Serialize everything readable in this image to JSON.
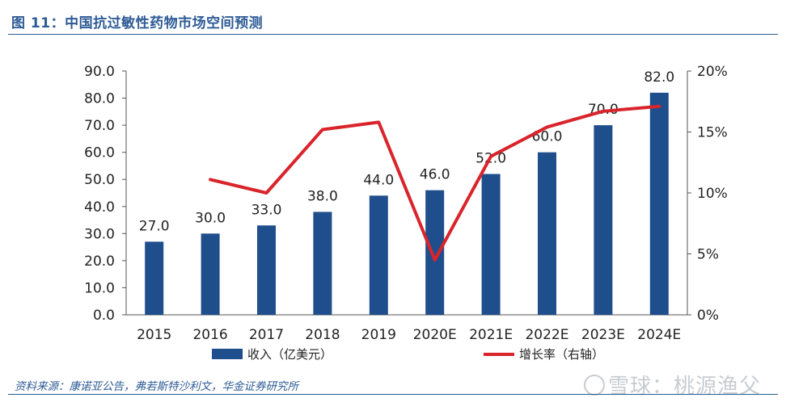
{
  "figure": {
    "title": "图 11：中国抗过敏性药物市场空间预测",
    "source": "资料来源：康诺亚公告，弗若斯特沙利文，华金证券研究所",
    "watermark": "雪球：桃源渔父"
  },
  "chart_data": {
    "type": "bar",
    "categories": [
      "2015",
      "2016",
      "2017",
      "2018",
      "2019",
      "2020E",
      "2021E",
      "2022E",
      "2023E",
      "2024E"
    ],
    "series": [
      {
        "name": "收入（亿美元）",
        "type": "bar",
        "axis": "left",
        "color": "#1f4e8c",
        "values": [
          27.0,
          30.0,
          33.0,
          38.0,
          44.0,
          46.0,
          52.0,
          60.0,
          70.0,
          82.0
        ],
        "labels": [
          "27.0",
          "30.0",
          "33.0",
          "38.0",
          "44.0",
          "46.0",
          "52.0",
          "60.0",
          "70.0",
          "82.0"
        ]
      },
      {
        "name": "增长率（右轴）",
        "type": "line",
        "axis": "right",
        "color": "#d9242b",
        "values": [
          null,
          0.111,
          0.1,
          0.152,
          0.158,
          0.045,
          0.13,
          0.154,
          0.167,
          0.171
        ]
      }
    ],
    "y_left": {
      "min": 0,
      "max": 90,
      "step": 10,
      "tick_labels": [
        "0.0",
        "10.0",
        "20.0",
        "30.0",
        "40.0",
        "50.0",
        "60.0",
        "70.0",
        "80.0",
        "90.0"
      ]
    },
    "y_right": {
      "min": 0,
      "max": 0.2,
      "step": 0.05,
      "tick_labels": [
        "0%",
        "5%",
        "10%",
        "15%",
        "20%"
      ]
    },
    "grid": false,
    "legend": "bottom"
  }
}
